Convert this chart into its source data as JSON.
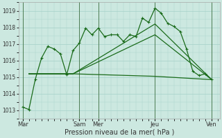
{
  "background_color": "#cce8e0",
  "grid_color": "#aad4cc",
  "line_color": "#1a6b1a",
  "ylim": [
    1012.5,
    1019.5
  ],
  "yticks": [
    1013,
    1014,
    1015,
    1016,
    1017,
    1018,
    1019
  ],
  "xlabel": "Pression niveau de la mer( hPa )",
  "day_labels": [
    "Mar",
    "Sam",
    "Mer",
    "Jeu",
    "Ven"
  ],
  "day_positions": [
    0,
    72,
    96,
    168,
    240
  ],
  "xlim": [
    -5,
    250
  ],
  "line1_x": [
    0,
    8,
    16,
    24,
    32,
    40,
    48,
    56,
    64,
    72,
    80,
    88,
    96,
    104,
    112,
    120,
    128,
    136,
    144,
    152,
    160,
    168,
    176,
    184,
    192,
    200,
    208,
    216,
    224,
    232,
    240
  ],
  "line1_y": [
    1013.2,
    1013.05,
    1014.85,
    1016.15,
    1016.85,
    1016.7,
    1016.4,
    1015.15,
    1016.6,
    1017.05,
    1017.95,
    1017.55,
    1017.95,
    1017.45,
    1017.55,
    1017.55,
    1017.15,
    1017.55,
    1017.45,
    1018.55,
    1018.3,
    1019.15,
    1018.85,
    1018.25,
    1018.05,
    1017.75,
    1016.7,
    1015.35,
    1015.1,
    1015.2,
    1014.85
  ],
  "line2_x": [
    8,
    64,
    168,
    240
  ],
  "line2_y": [
    1015.2,
    1015.2,
    1018.2,
    1014.85
  ],
  "line3_x": [
    8,
    64,
    168,
    240
  ],
  "line3_y": [
    1015.2,
    1015.2,
    1015.05,
    1014.85
  ],
  "line4_x": [
    8,
    64,
    168,
    240
  ],
  "line4_y": [
    1015.2,
    1015.2,
    1017.55,
    1014.85
  ],
  "figwidth": 3.2,
  "figheight": 2.0,
  "dpi": 100
}
